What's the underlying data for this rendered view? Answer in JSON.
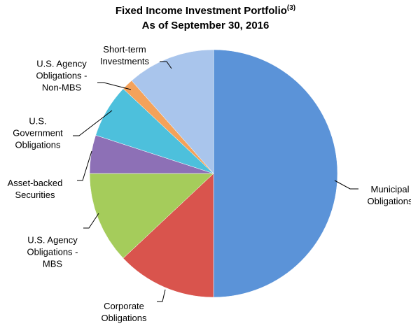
{
  "chart_data": {
    "type": "pie",
    "title": "Fixed Income Investment Portfolio",
    "title_note": "(3)",
    "subtitle": "As of September 30, 2016",
    "categories": [
      "Municipal\nObligations",
      "Corporate\nObligations",
      "U.S. Agency\nObligations -\nMBS",
      "Asset-backed\nSecurities",
      "U.S.\nGovernment\nObligations",
      "U.S. Agency\nObligations -\nNon-MBS",
      "Short-term\nInvestments"
    ],
    "values": [
      50,
      13,
      12,
      5,
      7,
      1.5,
      11.5
    ],
    "colors": [
      "#5b93d8",
      "#d9544d",
      "#a5cc5b",
      "#8d70b6",
      "#4dc0dc",
      "#f4a25a",
      "#a9c5ec"
    ]
  }
}
